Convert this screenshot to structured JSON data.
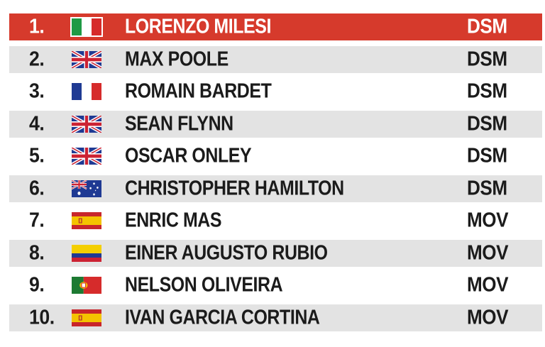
{
  "results": [
    {
      "position": "1.",
      "flag": "italy-flag",
      "rider": "LORENZO MILESI",
      "team": "DSM"
    },
    {
      "position": "2.",
      "flag": "uk-flag",
      "rider": "MAX POOLE",
      "team": "DSM"
    },
    {
      "position": "3.",
      "flag": "france-flag",
      "rider": "ROMAIN BARDET",
      "team": "DSM"
    },
    {
      "position": "4.",
      "flag": "uk-flag",
      "rider": "SEAN FLYNN",
      "team": "DSM"
    },
    {
      "position": "5.",
      "flag": "uk-flag",
      "rider": "OSCAR ONLEY",
      "team": "DSM"
    },
    {
      "position": "6.",
      "flag": "australia-flag",
      "rider": "CHRISTOPHER HAMILTON",
      "team": "DSM"
    },
    {
      "position": "7.",
      "flag": "spain-flag",
      "rider": "ENRIC MAS",
      "team": "MOV"
    },
    {
      "position": "8.",
      "flag": "colombia-flag",
      "rider": "EINER AUGUSTO RUBIO",
      "team": "MOV"
    },
    {
      "position": "9.",
      "flag": "portugal-flag",
      "rider": "NELSON OLIVEIRA",
      "team": "MOV"
    },
    {
      "position": "10.",
      "flag": "spain-flag",
      "rider": "IVAN GARCIA CORTINA",
      "team": "MOV"
    }
  ],
  "colors": {
    "highlight_row": "#d63a2c",
    "alt_row": "#e3e3e3",
    "text": "#1b1b1b"
  }
}
